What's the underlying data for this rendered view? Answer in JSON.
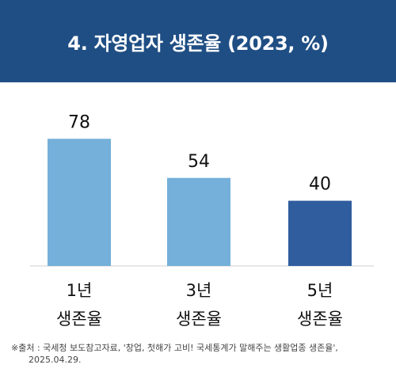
{
  "header": {
    "title": "4. 자영업자 생존율 (2023, %)",
    "background_color": "#1f4e84"
  },
  "chart_data": {
    "type": "bar",
    "title": "4. 자영업자 생존율 (2023, %)",
    "categories": [
      [
        "1년",
        "생존율"
      ],
      [
        "3년",
        "생존율"
      ],
      [
        "5년",
        "생존율"
      ]
    ],
    "values": [
      78,
      54,
      40
    ],
    "data_labels": [
      "78",
      "54",
      "40"
    ],
    "bar_colors": [
      "#74b0d9",
      "#74b0d9",
      "#2f5d9e"
    ],
    "ylim": [
      0,
      100
    ],
    "grid": false,
    "legend": "none",
    "axis_line_color": "#cfcfcf"
  },
  "source": {
    "line1": "※출처 : 국세청 보도참고자료, '창업, 첫해가 고비! 국세통계가 말해주는 생활업종 생존율',",
    "line2": "2025.04.29."
  }
}
